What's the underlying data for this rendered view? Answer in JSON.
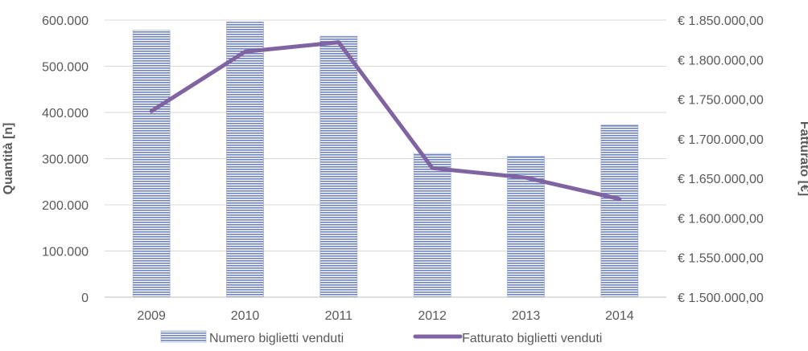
{
  "chart_data": {
    "type": "bar",
    "categories": [
      "2009",
      "2010",
      "2011",
      "2012",
      "2013",
      "2014"
    ],
    "series": [
      {
        "name": "Numero biglietti venduti",
        "type": "bar",
        "axis": "left",
        "values": [
          578000,
          596000,
          565000,
          311000,
          305000,
          373000
        ]
      },
      {
        "name": "Fatturato biglietti venduti",
        "type": "line",
        "axis": "right",
        "values": [
          1735000,
          1810000,
          1822000,
          1663000,
          1651000,
          1624000
        ]
      }
    ],
    "ylabel": "Quantità [n]",
    "y2label": "Fatturato [€]",
    "ylim": [
      0,
      600000
    ],
    "y2lim": [
      1500000,
      1850000
    ],
    "yticks": [
      "0",
      "100.000",
      "200.000",
      "300.000",
      "400.000",
      "500.000",
      "600.000"
    ],
    "y2ticks": [
      "€ 1.500.000,00",
      "€ 1.550.000,00",
      "€ 1.600.000,00",
      "€ 1.650.000,00",
      "€ 1.700.000,00",
      "€ 1.750.000,00",
      "€ 1.800.000,00",
      "€ 1.850.000,00"
    ],
    "grid": true,
    "legend": "bottom",
    "colors": {
      "bar_fill": "#8fa2d4",
      "bar_stripe": "#5a6fb0",
      "line": "#8064a2",
      "grid": "#d9d9d9",
      "text": "#595959"
    }
  }
}
